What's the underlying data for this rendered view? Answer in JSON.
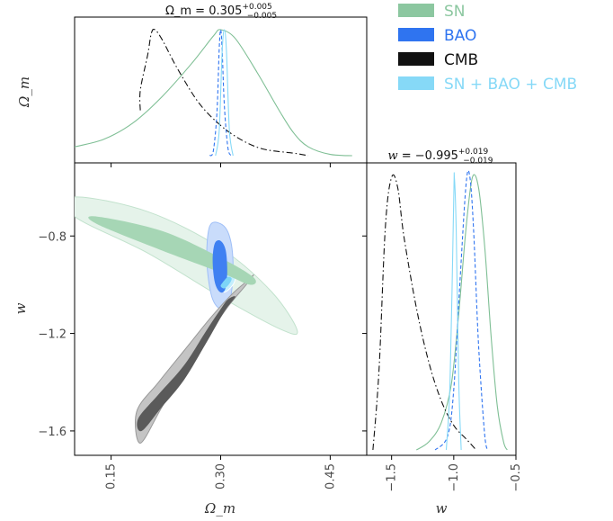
{
  "chart_data": {
    "type": "corner",
    "parameters": [
      "Omega_m",
      "w"
    ],
    "axis_labels": {
      "Omega_m": "Ω_m",
      "w": "w"
    },
    "limits": {
      "Omega_m": [
        0.1,
        0.5
      ],
      "w": [
        -1.7,
        -0.5
      ]
    },
    "ticks": {
      "Omega_m": {
        "values": [
          0.15,
          0.3,
          0.45
        ],
        "labels": [
          "0.15",
          "0.30",
          "0.45"
        ]
      },
      "w_2d": {
        "values": [
          -0.8,
          -1.2,
          -1.6
        ],
        "labels": [
          "−0.8",
          "−1.2",
          "−1.6"
        ]
      },
      "w_1d": {
        "values": [
          -1.5,
          -1.0,
          -0.5
        ],
        "labels": [
          "−1.5",
          "−1.0",
          "−0.5"
        ]
      }
    },
    "titles": {
      "Omega_m": {
        "name": "Ω_m",
        "value": "0.305",
        "plus": "+0.005",
        "minus": "−0.005"
      },
      "w": {
        "name": "w",
        "value": "−0.995",
        "plus": "+0.019",
        "minus": "−0.019"
      }
    },
    "legend": {
      "placement": "top-right",
      "entries": [
        {
          "label": "SN",
          "color": "#8cc7a0",
          "text_color": "#8cc7a0"
        },
        {
          "label": "BAO",
          "color": "#2f74f0",
          "text_color": "#2f74f0"
        },
        {
          "label": "CMB",
          "color": "#111111",
          "text_color": "#111111"
        },
        {
          "label": "SN + BAO + CMB",
          "color": "#86d9f7",
          "text_color": "#86d9f7"
        }
      ]
    },
    "series": [
      {
        "name": "SN",
        "color": "#7fbf95",
        "line": "solid",
        "omega_m_1d": [
          [
            0.1,
            0.07
          ],
          [
            0.14,
            0.13
          ],
          [
            0.18,
            0.26
          ],
          [
            0.22,
            0.47
          ],
          [
            0.26,
            0.73
          ],
          [
            0.29,
            0.95
          ],
          [
            0.3,
            1.0
          ],
          [
            0.32,
            0.93
          ],
          [
            0.35,
            0.66
          ],
          [
            0.38,
            0.36
          ],
          [
            0.4,
            0.18
          ],
          [
            0.42,
            0.07
          ],
          [
            0.45,
            0.01
          ],
          [
            0.48,
            0.0
          ]
        ],
        "w_1d": [
          [
            -1.3,
            0.0
          ],
          [
            -1.2,
            0.03
          ],
          [
            -1.1,
            0.1
          ],
          [
            -1.02,
            0.24
          ],
          [
            -0.96,
            0.5
          ],
          [
            -0.9,
            0.82
          ],
          [
            -0.85,
            1.0
          ],
          [
            -0.8,
            0.96
          ],
          [
            -0.75,
            0.74
          ],
          [
            -0.7,
            0.42
          ],
          [
            -0.65,
            0.16
          ],
          [
            -0.6,
            0.03
          ],
          [
            -0.57,
            0.0
          ]
        ],
        "contour_68": [
          [
            0.13,
            -0.72
          ],
          [
            0.22,
            -0.78
          ],
          [
            0.3,
            -0.89
          ],
          [
            0.345,
            -0.97
          ],
          [
            0.34,
            -1.0
          ],
          [
            0.3,
            -0.95
          ],
          [
            0.22,
            -0.86
          ],
          [
            0.13,
            -0.75
          ]
        ],
        "contour_95": [
          [
            0.1,
            -0.64
          ],
          [
            0.2,
            -0.7
          ],
          [
            0.3,
            -0.85
          ],
          [
            0.37,
            -1.03
          ],
          [
            0.405,
            -1.19
          ],
          [
            0.38,
            -1.18
          ],
          [
            0.3,
            -1.05
          ],
          [
            0.2,
            -0.87
          ],
          [
            0.1,
            -0.72
          ]
        ]
      },
      {
        "name": "BAO",
        "color": "#2f74f0",
        "line": "dashed",
        "omega_m_1d": [
          [
            0.285,
            0.0
          ],
          [
            0.29,
            0.04
          ],
          [
            0.295,
            0.35
          ],
          [
            0.298,
            0.85
          ],
          [
            0.3,
            1.0
          ],
          [
            0.302,
            0.85
          ],
          [
            0.305,
            0.4
          ],
          [
            0.31,
            0.06
          ],
          [
            0.315,
            0.0
          ]
        ],
        "w_1d": [
          [
            -1.15,
            0.0
          ],
          [
            -1.05,
            0.05
          ],
          [
            -1.0,
            0.22
          ],
          [
            -0.95,
            0.62
          ],
          [
            -0.9,
            0.98
          ],
          [
            -0.87,
            1.0
          ],
          [
            -0.84,
            0.8
          ],
          [
            -0.8,
            0.38
          ],
          [
            -0.75,
            0.05
          ],
          [
            -0.72,
            0.0
          ]
        ],
        "contour_68": [
          [
            0.292,
            -0.83
          ],
          [
            0.3,
            -0.82
          ],
          [
            0.307,
            -0.86
          ],
          [
            0.309,
            -0.95
          ],
          [
            0.306,
            -1.02
          ],
          [
            0.299,
            -1.03
          ],
          [
            0.292,
            -0.99
          ],
          [
            0.289,
            -0.9
          ]
        ],
        "contour_95": [
          [
            0.285,
            -0.76
          ],
          [
            0.3,
            -0.75
          ],
          [
            0.312,
            -0.8
          ],
          [
            0.317,
            -0.92
          ],
          [
            0.313,
            -1.06
          ],
          [
            0.301,
            -1.1
          ],
          [
            0.288,
            -1.05
          ],
          [
            0.281,
            -0.9
          ]
        ]
      },
      {
        "name": "CMB",
        "color": "#111111",
        "line": "dashdot",
        "omega_m_1d": [
          [
            0.19,
            0.36
          ],
          [
            0.19,
            0.52
          ],
          [
            0.2,
            0.8
          ],
          [
            0.205,
            0.97
          ],
          [
            0.21,
            1.0
          ],
          [
            0.22,
            0.92
          ],
          [
            0.24,
            0.7
          ],
          [
            0.27,
            0.42
          ],
          [
            0.3,
            0.24
          ],
          [
            0.33,
            0.12
          ],
          [
            0.36,
            0.05
          ],
          [
            0.4,
            0.02
          ],
          [
            0.42,
            0.0
          ]
        ],
        "w_1d": [
          [
            -1.65,
            0.0
          ],
          [
            -1.6,
            0.3
          ],
          [
            -1.55,
            0.82
          ],
          [
            -1.5,
            1.0
          ],
          [
            -1.45,
            0.96
          ],
          [
            -1.4,
            0.78
          ],
          [
            -1.3,
            0.52
          ],
          [
            -1.2,
            0.32
          ],
          [
            -1.1,
            0.18
          ],
          [
            -1.0,
            0.09
          ],
          [
            -0.9,
            0.04
          ],
          [
            -0.82,
            0.0
          ]
        ],
        "contour_68": [
          [
            0.187,
            -1.55
          ],
          [
            0.215,
            -1.45
          ],
          [
            0.25,
            -1.33
          ],
          [
            0.28,
            -1.19
          ],
          [
            0.3,
            -1.1
          ],
          [
            0.31,
            -1.06
          ],
          [
            0.32,
            -1.05
          ],
          [
            0.305,
            -1.11
          ],
          [
            0.28,
            -1.24
          ],
          [
            0.25,
            -1.39
          ],
          [
            0.22,
            -1.5
          ],
          [
            0.192,
            -1.6
          ]
        ],
        "contour_95": [
          [
            0.185,
            -1.52
          ],
          [
            0.215,
            -1.4
          ],
          [
            0.25,
            -1.27
          ],
          [
            0.285,
            -1.14
          ],
          [
            0.315,
            -1.04
          ],
          [
            0.338,
            -0.98
          ],
          [
            0.345,
            -0.96
          ],
          [
            0.335,
            -1.0
          ],
          [
            0.31,
            -1.09
          ],
          [
            0.28,
            -1.22
          ],
          [
            0.25,
            -1.36
          ],
          [
            0.22,
            -1.5
          ],
          [
            0.19,
            -1.65
          ]
        ]
      },
      {
        "name": "SN + BAO + CMB",
        "color": "#86d9f7",
        "line": "solid",
        "omega_m_1d": [
          [
            0.293,
            0.0
          ],
          [
            0.298,
            0.2
          ],
          [
            0.302,
            0.82
          ],
          [
            0.305,
            1.0
          ],
          [
            0.308,
            0.82
          ],
          [
            0.312,
            0.2
          ],
          [
            0.317,
            0.0
          ]
        ],
        "w_1d": [
          [
            -1.06,
            0.0
          ],
          [
            -1.03,
            0.25
          ],
          [
            -1.0,
            0.92
          ],
          [
            -0.995,
            1.0
          ],
          [
            -0.98,
            0.8
          ],
          [
            -0.96,
            0.25
          ],
          [
            -0.94,
            0.0
          ]
        ],
        "contour_68": [
          [
            0.303,
            -0.99
          ],
          [
            0.31,
            -0.968
          ],
          [
            0.315,
            -0.975
          ],
          [
            0.312,
            -0.996
          ],
          [
            0.305,
            -1.015
          ],
          [
            0.3,
            -1.006
          ]
        ],
        "contour_95": [
          [
            0.298,
            -0.985
          ],
          [
            0.31,
            -0.95
          ],
          [
            0.32,
            -0.955
          ],
          [
            0.318,
            -0.995
          ],
          [
            0.306,
            -1.03
          ],
          [
            0.296,
            -1.015
          ]
        ]
      }
    ]
  }
}
